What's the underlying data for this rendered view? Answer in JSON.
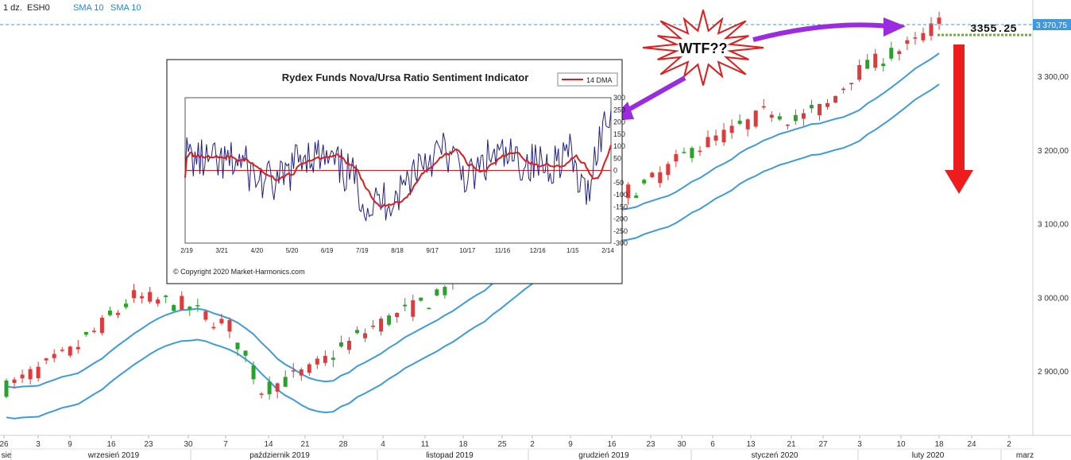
{
  "header": {
    "interval": "1 dz.",
    "symbol": "ESH0",
    "sma_a": "SMA 10",
    "sma_b": "SMA 10"
  },
  "price_tag": "3 370,75",
  "annotation_level": "3355.25",
  "wtf_label": "WTF??",
  "colors": {
    "up": "#27a427",
    "down": "#e03a3a",
    "sma": "#3c9be0",
    "arrow_purple": "#9a2be0",
    "arrow_red": "#ee1c1c",
    "ratio_line": "#1f1f8f",
    "dma_line": "#dd1c1c",
    "level_dashed": "#6fae3a"
  },
  "chart_data": [
    {
      "type": "candlestick",
      "title": "",
      "yticks": [
        "3 300,00",
        "3 200,00",
        "3 100,00",
        "3 000,00",
        "2 900,00"
      ],
      "ylim": [
        2825,
        3382
      ],
      "x_day_labels": [
        "26",
        "3",
        "9",
        "16",
        "23",
        "30",
        "7",
        "14",
        "21",
        "28",
        "4",
        "11",
        "18",
        "25",
        "2",
        "9",
        "16",
        "23",
        "30",
        "6",
        "13",
        "21",
        "27",
        "3",
        "10",
        "18",
        "24",
        "2"
      ],
      "x_month_labels": [
        "sie",
        "wrzesień 2019",
        "październik 2019",
        "listopad 2019",
        "grudzień 2019",
        "styczeń 2020",
        "luty 2020",
        "marz"
      ],
      "series": [
        {
          "name": "SMA 10"
        },
        {
          "name": "SMA 10"
        }
      ],
      "last_price": 3370.75,
      "marked_level": 3355.25
    },
    {
      "type": "line",
      "title": "Rydex Funds Nova/Ursa  Ratio Sentiment Indicator",
      "legend": "14 DMA",
      "legend_position": "top-right",
      "copyright": "© Copyright 2020 Market-Harmonics.com",
      "ylim": [
        -300,
        300
      ],
      "yticks": [
        "300",
        "250",
        "200",
        "150",
        "100",
        "50",
        "0",
        "-50",
        "-100",
        "-150",
        "-200",
        "-250",
        "-300"
      ],
      "xticks": [
        "2/19",
        "3/21",
        "4/20",
        "5/20",
        "6/19",
        "7/19",
        "8/18",
        "9/17",
        "10/17",
        "11/16",
        "12/16",
        "1/15",
        "2/14"
      ],
      "series": [
        {
          "name": "",
          "role": "ratio"
        },
        {
          "name": "14 DMA",
          "role": "dma"
        }
      ]
    }
  ]
}
